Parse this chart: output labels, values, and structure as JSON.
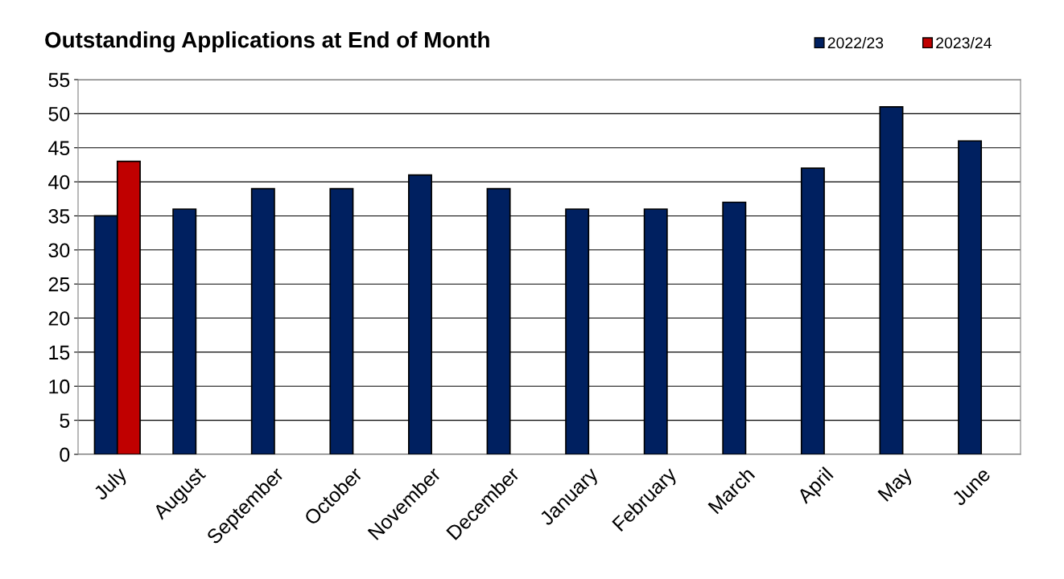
{
  "chart_data": {
    "type": "bar",
    "title": "Outstanding Applications at End of Month",
    "categories": [
      "July",
      "August",
      "September",
      "October",
      "November",
      "December",
      "January",
      "February",
      "March",
      "April",
      "May",
      "June"
    ],
    "series": [
      {
        "name": "2022/23",
        "color": "#002060",
        "values": [
          35,
          36,
          39,
          39,
          41,
          39,
          36,
          36,
          37,
          42,
          51,
          46
        ]
      },
      {
        "name": "2023/24",
        "color": "#c00000",
        "values": [
          43,
          null,
          null,
          null,
          null,
          null,
          null,
          null,
          null,
          null,
          null,
          null
        ]
      }
    ],
    "ylim": [
      0,
      55
    ],
    "yticks": [
      0,
      5,
      10,
      15,
      20,
      25,
      30,
      35,
      40,
      45,
      50,
      55
    ],
    "grid": "y",
    "legend": "top right"
  }
}
